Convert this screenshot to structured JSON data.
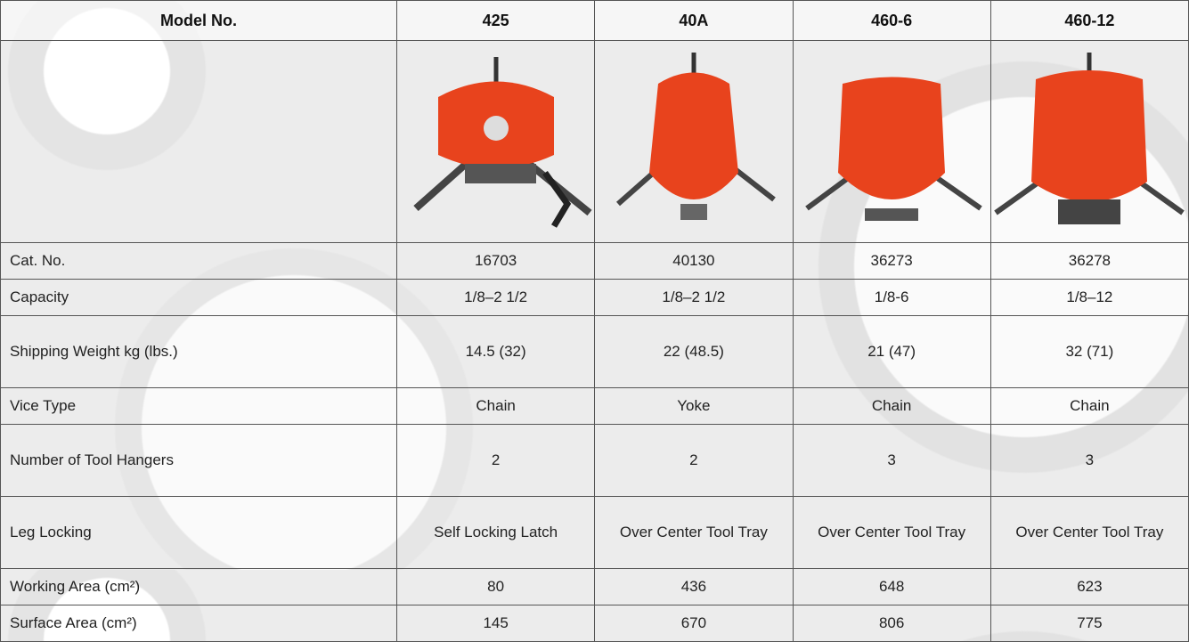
{
  "table": {
    "header": [
      "Model No.",
      "425",
      "40A",
      "460-6",
      "460-12"
    ],
    "rows": [
      [
        "Cat. No.",
        "16703",
        "40130",
        "36273",
        "36278"
      ],
      [
        "Capacity",
        "1/8–2 1/2",
        "1/8–2 1/2",
        "1/8-6",
        "1/8–12"
      ],
      [
        "Shipping Weight kg (lbs.)",
        "14.5 (32)",
        "22 (48.5)",
        "21 (47)",
        "32 (71)"
      ],
      [
        "Vice Type",
        "Chain",
        "Yoke",
        "Chain",
        "Chain"
      ],
      [
        "Number of Tool Hangers",
        "2",
        "2",
        "3",
        "3"
      ],
      [
        "Leg Locking",
        "Self Locking Latch",
        "Over Center Tool Tray",
        "Over Center Tool Tray",
        "Over Center Tool Tray"
      ],
      [
        "Working Area (cm²)",
        "80",
        "436",
        "648",
        "623"
      ],
      [
        "Surface Area (cm²)",
        "145",
        "670",
        "806",
        "775"
      ]
    ]
  }
}
